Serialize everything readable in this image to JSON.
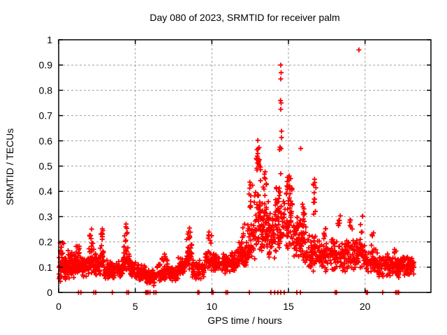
{
  "window": {
    "background": "#ffffff"
  },
  "colors": {
    "axis": "#000000",
    "grid": "#9e9e9e",
    "marker": "#ff0000",
    "text": "#000000"
  },
  "chart_data": {
    "type": "scatter",
    "title": "Day 080 of 2023, SRMTID for receiver palm",
    "xlabel": "GPS time / hours",
    "ylabel": "SRMTID / TECUs",
    "series_name": "SRMTID",
    "xlim": [
      0,
      24.3
    ],
    "ylim": [
      0,
      1
    ],
    "grid": true,
    "legend_position": "none",
    "marker": {
      "shape": "plus",
      "color": "#ff0000",
      "size": 7
    },
    "xticks": [
      {
        "v": 0,
        "label": "0"
      },
      {
        "v": 5,
        "label": "5"
      },
      {
        "v": 10,
        "label": "10"
      },
      {
        "v": 15,
        "label": "15"
      },
      {
        "v": 20,
        "label": "20"
      }
    ],
    "yticks": [
      {
        "v": 0,
        "label": "0"
      },
      {
        "v": 0.1,
        "label": "0.1"
      },
      {
        "v": 0.2,
        "label": "0.2"
      },
      {
        "v": 0.3,
        "label": "0.3"
      },
      {
        "v": 0.4,
        "label": "0.4"
      },
      {
        "v": 0.5,
        "label": "0.5"
      },
      {
        "v": 0.6,
        "label": "0.6"
      },
      {
        "v": 0.7,
        "label": "0.7"
      },
      {
        "v": 0.8,
        "label": "0.8"
      },
      {
        "v": 0.9,
        "label": "0.9"
      },
      {
        "v": 1,
        "label": "1"
      }
    ],
    "points_outliers": [
      [
        14.5,
        0.9
      ],
      [
        14.52,
        0.87
      ],
      [
        14.5,
        0.845
      ],
      [
        14.48,
        0.76
      ],
      [
        14.52,
        0.75
      ],
      [
        14.5,
        0.725
      ],
      [
        14.55,
        0.638
      ],
      [
        14.55,
        0.613
      ],
      [
        14.52,
        0.569
      ],
      [
        14.5,
        0.47
      ],
      [
        14.45,
        0.575
      ],
      [
        14.42,
        0.565
      ],
      [
        13.0,
        0.602
      ],
      [
        12.95,
        0.565
      ],
      [
        13.0,
        0.55
      ],
      [
        12.9,
        0.53
      ],
      [
        13.05,
        0.52
      ],
      [
        13.1,
        0.5
      ],
      [
        19.6,
        0.96
      ],
      [
        15.8,
        0.57
      ],
      [
        16.7,
        0.448
      ],
      [
        16.72,
        0.435
      ],
      [
        16.68,
        0.37
      ],
      [
        16.7,
        0.357
      ],
      [
        16.65,
        0.31
      ]
    ],
    "zero_points_x": [
      1.3,
      1.45,
      2.3,
      2.42,
      3.5,
      4.45,
      4.56,
      5.68,
      5.76,
      5.84,
      5.96,
      6.22,
      6.35,
      9.08,
      9.16,
      10.0,
      10.08,
      10.92,
      11.02,
      12.45,
      13.85,
      14.1,
      14.3,
      14.5,
      14.72,
      15.55,
      15.78,
      18.05,
      18.14,
      20.08,
      20.16,
      21.15,
      22.0,
      22.1,
      22.2
    ],
    "density_bands": [
      [
        0.0,
        0.5,
        55,
        0.04,
        0.16
      ],
      [
        0.05,
        0.35,
        10,
        0.14,
        0.21
      ],
      [
        0.5,
        1.0,
        55,
        0.05,
        0.15
      ],
      [
        0.6,
        0.9,
        8,
        0.13,
        0.18
      ],
      [
        1.0,
        1.5,
        55,
        0.06,
        0.16
      ],
      [
        1.1,
        1.35,
        8,
        0.14,
        0.2
      ],
      [
        1.5,
        2.0,
        50,
        0.05,
        0.15
      ],
      [
        1.95,
        2.3,
        35,
        0.07,
        0.18
      ],
      [
        2.0,
        2.25,
        8,
        0.17,
        0.26
      ],
      [
        2.3,
        2.7,
        40,
        0.06,
        0.16
      ],
      [
        2.7,
        2.95,
        25,
        0.07,
        0.18
      ],
      [
        2.75,
        2.9,
        8,
        0.18,
        0.275
      ],
      [
        2.95,
        3.6,
        55,
        0.04,
        0.14
      ],
      [
        3.6,
        4.2,
        50,
        0.05,
        0.13
      ],
      [
        4.2,
        4.65,
        40,
        0.07,
        0.19
      ],
      [
        4.3,
        4.55,
        8,
        0.19,
        0.285
      ],
      [
        4.65,
        5.2,
        45,
        0.05,
        0.13
      ],
      [
        5.2,
        5.7,
        45,
        0.04,
        0.11
      ],
      [
        5.7,
        6.4,
        60,
        0.025,
        0.09
      ],
      [
        6.4,
        7.3,
        60,
        0.04,
        0.12
      ],
      [
        6.7,
        7.1,
        10,
        0.11,
        0.17
      ],
      [
        7.3,
        7.8,
        42,
        0.04,
        0.1
      ],
      [
        7.8,
        8.3,
        45,
        0.06,
        0.15
      ],
      [
        8.3,
        8.7,
        35,
        0.08,
        0.2
      ],
      [
        8.35,
        8.6,
        8,
        0.2,
        0.27
      ],
      [
        8.7,
        9.5,
        60,
        0.05,
        0.135
      ],
      [
        9.5,
        10.3,
        55,
        0.07,
        0.17
      ],
      [
        9.75,
        10.0,
        7,
        0.17,
        0.25
      ],
      [
        10.3,
        11.1,
        60,
        0.07,
        0.16
      ],
      [
        11.1,
        11.7,
        50,
        0.08,
        0.17
      ],
      [
        11.7,
        12.3,
        50,
        0.09,
        0.21
      ],
      [
        11.9,
        12.15,
        6,
        0.19,
        0.28
      ],
      [
        12.3,
        12.75,
        40,
        0.1,
        0.3
      ],
      [
        12.4,
        12.7,
        10,
        0.3,
        0.48
      ],
      [
        12.75,
        13.25,
        50,
        0.13,
        0.42
      ],
      [
        12.85,
        13.2,
        14,
        0.42,
        0.6
      ],
      [
        13.25,
        13.7,
        50,
        0.14,
        0.42
      ],
      [
        13.3,
        13.6,
        10,
        0.36,
        0.5
      ],
      [
        13.7,
        14.15,
        45,
        0.12,
        0.36
      ],
      [
        14.15,
        14.45,
        40,
        0.15,
        0.45
      ],
      [
        14.45,
        15.3,
        70,
        0.15,
        0.44
      ],
      [
        14.8,
        15.25,
        14,
        0.38,
        0.48
      ],
      [
        15.3,
        15.75,
        42,
        0.12,
        0.32
      ],
      [
        15.75,
        16.15,
        38,
        0.1,
        0.32
      ],
      [
        15.9,
        16.1,
        8,
        0.26,
        0.36
      ],
      [
        16.15,
        16.9,
        55,
        0.08,
        0.24
      ],
      [
        16.6,
        16.8,
        7,
        0.3,
        0.45
      ],
      [
        16.9,
        17.6,
        55,
        0.08,
        0.21
      ],
      [
        17.2,
        17.5,
        6,
        0.2,
        0.28
      ],
      [
        17.6,
        18.45,
        60,
        0.08,
        0.22
      ],
      [
        18.2,
        18.4,
        6,
        0.24,
        0.33
      ],
      [
        18.45,
        19.25,
        60,
        0.08,
        0.22
      ],
      [
        19.0,
        19.2,
        6,
        0.22,
        0.3
      ],
      [
        19.25,
        20.0,
        58,
        0.08,
        0.22
      ],
      [
        19.6,
        19.9,
        6,
        0.22,
        0.32
      ],
      [
        20.0,
        20.85,
        60,
        0.06,
        0.18
      ],
      [
        20.4,
        20.6,
        5,
        0.17,
        0.25
      ],
      [
        20.85,
        21.7,
        60,
        0.055,
        0.16
      ],
      [
        21.7,
        22.5,
        58,
        0.05,
        0.16
      ],
      [
        21.9,
        22.15,
        5,
        0.14,
        0.19
      ],
      [
        22.5,
        23.2,
        52,
        0.06,
        0.15
      ]
    ]
  }
}
